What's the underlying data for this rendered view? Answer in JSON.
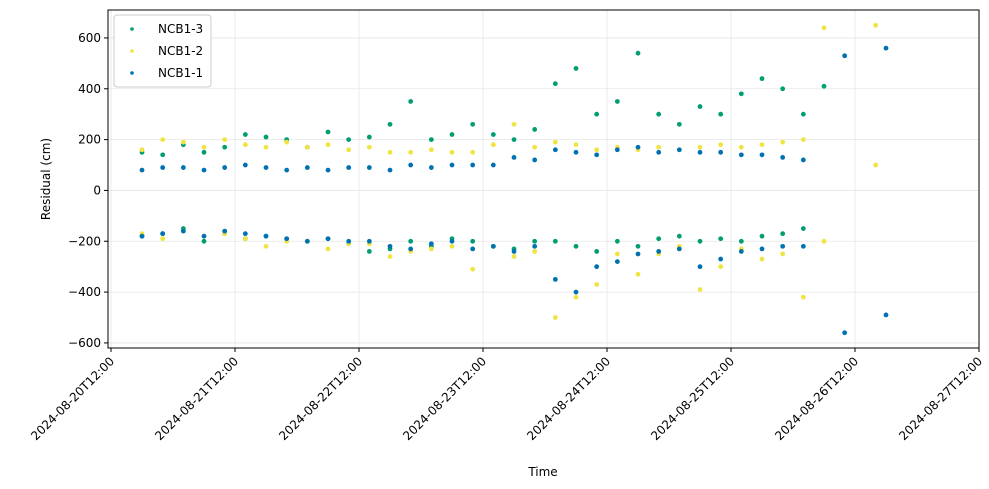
{
  "chart_data": {
    "type": "scatter",
    "xlabel": "Time",
    "ylabel": "Residual (cm)",
    "xlim": [
      "2024-08-20T11:25",
      "2024-08-27T12:00"
    ],
    "xticks": [
      "2024-08-20T12:00",
      "2024-08-21T12:00",
      "2024-08-22T12:00",
      "2024-08-23T12:00",
      "2024-08-24T12:00",
      "2024-08-25T12:00",
      "2024-08-26T12:00",
      "2024-08-27T12:00"
    ],
    "ylim": [
      -620,
      710
    ],
    "yticks": [
      {
        "value": -600,
        "label": "−600"
      },
      {
        "value": -400,
        "label": "−400"
      },
      {
        "value": -200,
        "label": "−200"
      },
      0,
      200,
      400,
      600
    ],
    "grid": true,
    "legend": "upper left",
    "series": [
      {
        "name": "NCB1-3",
        "color": "#009e73",
        "x": [
          "2024-08-20T18:00",
          "2024-08-20T18:00",
          "2024-08-20T22:00",
          "2024-08-20T22:00",
          "2024-08-21T02:00",
          "2024-08-21T02:00",
          "2024-08-21T06:00",
          "2024-08-21T06:00",
          "2024-08-21T10:00",
          "2024-08-21T10:00",
          "2024-08-21T14:00",
          "2024-08-21T14:00",
          "2024-08-21T18:00",
          "2024-08-21T18:00",
          "2024-08-21T22:00",
          "2024-08-21T22:00",
          "2024-08-22T02:00",
          "2024-08-22T02:00",
          "2024-08-22T06:00",
          "2024-08-22T06:00",
          "2024-08-22T10:00",
          "2024-08-22T10:00",
          "2024-08-22T14:00",
          "2024-08-22T14:00",
          "2024-08-22T18:00",
          "2024-08-22T18:00",
          "2024-08-22T22:00",
          "2024-08-22T22:00",
          "2024-08-23T02:00",
          "2024-08-23T02:00",
          "2024-08-23T06:00",
          "2024-08-23T06:00",
          "2024-08-23T10:00",
          "2024-08-23T10:00",
          "2024-08-23T14:00",
          "2024-08-23T14:00",
          "2024-08-23T18:00",
          "2024-08-23T18:00",
          "2024-08-23T22:00",
          "2024-08-23T22:00",
          "2024-08-24T02:00",
          "2024-08-24T02:00",
          "2024-08-24T06:00",
          "2024-08-24T06:00",
          "2024-08-24T10:00",
          "2024-08-24T10:00",
          "2024-08-24T14:00",
          "2024-08-24T14:00",
          "2024-08-24T18:00",
          "2024-08-24T18:00",
          "2024-08-24T22:00",
          "2024-08-24T22:00",
          "2024-08-25T02:00",
          "2024-08-25T02:00",
          "2024-08-25T06:00",
          "2024-08-25T06:00",
          "2024-08-25T10:00",
          "2024-08-25T10:00",
          "2024-08-25T14:00",
          "2024-08-25T14:00",
          "2024-08-25T18:00",
          "2024-08-25T18:00",
          "2024-08-25T22:00",
          "2024-08-25T22:00",
          "2024-08-26T02:00",
          "2024-08-26T02:00",
          "2024-08-26T06:00"
        ],
        "values": [
          150,
          -180,
          140,
          -170,
          180,
          -150,
          150,
          -200,
          170,
          -170,
          220,
          -190,
          210,
          -180,
          200,
          -190,
          170,
          -200,
          230,
          -190,
          200,
          -210,
          210,
          -240,
          260,
          -230,
          350,
          -200,
          200,
          -220,
          220,
          -190,
          260,
          -200,
          220,
          -220,
          200,
          -230,
          240,
          -200,
          420,
          -200,
          480,
          -220,
          300,
          -240,
          350,
          -200,
          540,
          -220,
          300,
          -190,
          260,
          -180,
          330,
          -200,
          300,
          -190,
          380,
          -200,
          440,
          -180,
          400,
          -170,
          300,
          -150,
          410
        ]
      },
      {
        "name": "NCB1-2",
        "color": "#f0e442",
        "x": [
          "2024-08-20T18:00",
          "2024-08-20T18:00",
          "2024-08-20T22:00",
          "2024-08-20T22:00",
          "2024-08-21T02:00",
          "2024-08-21T02:00",
          "2024-08-21T06:00",
          "2024-08-21T06:00",
          "2024-08-21T10:00",
          "2024-08-21T10:00",
          "2024-08-21T14:00",
          "2024-08-21T14:00",
          "2024-08-21T18:00",
          "2024-08-21T18:00",
          "2024-08-21T22:00",
          "2024-08-21T22:00",
          "2024-08-22T02:00",
          "2024-08-22T02:00",
          "2024-08-22T06:00",
          "2024-08-22T06:00",
          "2024-08-22T10:00",
          "2024-08-22T10:00",
          "2024-08-22T14:00",
          "2024-08-22T14:00",
          "2024-08-22T18:00",
          "2024-08-22T18:00",
          "2024-08-22T22:00",
          "2024-08-22T22:00",
          "2024-08-23T02:00",
          "2024-08-23T02:00",
          "2024-08-23T06:00",
          "2024-08-23T06:00",
          "2024-08-23T10:00",
          "2024-08-23T10:00",
          "2024-08-23T14:00",
          "2024-08-23T14:00",
          "2024-08-23T18:00",
          "2024-08-23T18:00",
          "2024-08-23T22:00",
          "2024-08-23T22:00",
          "2024-08-24T02:00",
          "2024-08-24T02:00",
          "2024-08-24T06:00",
          "2024-08-24T06:00",
          "2024-08-24T10:00",
          "2024-08-24T10:00",
          "2024-08-24T14:00",
          "2024-08-24T14:00",
          "2024-08-24T18:00",
          "2024-08-24T18:00",
          "2024-08-24T22:00",
          "2024-08-24T22:00",
          "2024-08-25T02:00",
          "2024-08-25T02:00",
          "2024-08-25T06:00",
          "2024-08-25T06:00",
          "2024-08-25T10:00",
          "2024-08-25T10:00",
          "2024-08-25T14:00",
          "2024-08-25T14:00",
          "2024-08-25T18:00",
          "2024-08-25T18:00",
          "2024-08-25T22:00",
          "2024-08-25T22:00",
          "2024-08-26T02:00",
          "2024-08-26T02:00",
          "2024-08-26T06:00",
          "2024-08-26T06:00",
          "2024-08-26T16:00",
          "2024-08-26T16:00"
        ],
        "values": [
          160,
          -170,
          200,
          -190,
          190,
          -160,
          170,
          -180,
          200,
          -170,
          180,
          -190,
          170,
          -220,
          190,
          -200,
          170,
          -200,
          180,
          -230,
          160,
          -210,
          170,
          -210,
          150,
          -260,
          150,
          -240,
          160,
          -230,
          150,
          -220,
          150,
          -310,
          180,
          -220,
          260,
          -260,
          170,
          -240,
          190,
          -500,
          180,
          -420,
          160,
          -370,
          170,
          -250,
          160,
          -330,
          170,
          -250,
          160,
          -220,
          170,
          -390,
          180,
          -300,
          170,
          -230,
          180,
          -270,
          190,
          -250,
          200,
          -420,
          640,
          -200,
          650,
          100
        ]
      },
      {
        "name": "NCB1-1",
        "color": "#0072b2",
        "x": [
          "2024-08-20T18:00",
          "2024-08-20T18:00",
          "2024-08-20T22:00",
          "2024-08-20T22:00",
          "2024-08-21T02:00",
          "2024-08-21T02:00",
          "2024-08-21T06:00",
          "2024-08-21T06:00",
          "2024-08-21T10:00",
          "2024-08-21T10:00",
          "2024-08-21T14:00",
          "2024-08-21T14:00",
          "2024-08-21T18:00",
          "2024-08-21T18:00",
          "2024-08-21T22:00",
          "2024-08-21T22:00",
          "2024-08-22T02:00",
          "2024-08-22T02:00",
          "2024-08-22T06:00",
          "2024-08-22T06:00",
          "2024-08-22T10:00",
          "2024-08-22T10:00",
          "2024-08-22T14:00",
          "2024-08-22T14:00",
          "2024-08-22T18:00",
          "2024-08-22T18:00",
          "2024-08-22T22:00",
          "2024-08-22T22:00",
          "2024-08-23T02:00",
          "2024-08-23T02:00",
          "2024-08-23T06:00",
          "2024-08-23T06:00",
          "2024-08-23T10:00",
          "2024-08-23T10:00",
          "2024-08-23T14:00",
          "2024-08-23T14:00",
          "2024-08-23T18:00",
          "2024-08-23T18:00",
          "2024-08-23T22:00",
          "2024-08-23T22:00",
          "2024-08-24T02:00",
          "2024-08-24T02:00",
          "2024-08-24T06:00",
          "2024-08-24T06:00",
          "2024-08-24T10:00",
          "2024-08-24T10:00",
          "2024-08-24T14:00",
          "2024-08-24T14:00",
          "2024-08-24T18:00",
          "2024-08-24T18:00",
          "2024-08-24T22:00",
          "2024-08-24T22:00",
          "2024-08-25T02:00",
          "2024-08-25T02:00",
          "2024-08-25T06:00",
          "2024-08-25T06:00",
          "2024-08-25T10:00",
          "2024-08-25T10:00",
          "2024-08-25T14:00",
          "2024-08-25T14:00",
          "2024-08-25T18:00",
          "2024-08-25T18:00",
          "2024-08-25T22:00",
          "2024-08-25T22:00",
          "2024-08-26T02:00",
          "2024-08-26T02:00",
          "2024-08-26T10:00",
          "2024-08-26T10:00",
          "2024-08-26T18:00",
          "2024-08-26T18:00"
        ],
        "values": [
          80,
          -180,
          90,
          -170,
          90,
          -160,
          80,
          -180,
          90,
          -160,
          100,
          -170,
          90,
          -180,
          80,
          -190,
          90,
          -200,
          80,
          -190,
          90,
          -200,
          90,
          -200,
          80,
          -220,
          100,
          -230,
          90,
          -210,
          100,
          -200,
          100,
          -230,
          100,
          -220,
          130,
          -240,
          120,
          -220,
          160,
          -350,
          150,
          -400,
          140,
          -300,
          160,
          -280,
          170,
          -250,
          150,
          -240,
          160,
          -230,
          150,
          -300,
          150,
          -270,
          140,
          -240,
          140,
          -230,
          130,
          -220,
          120,
          -220,
          530,
          -560,
          560,
          -490
        ]
      }
    ]
  }
}
